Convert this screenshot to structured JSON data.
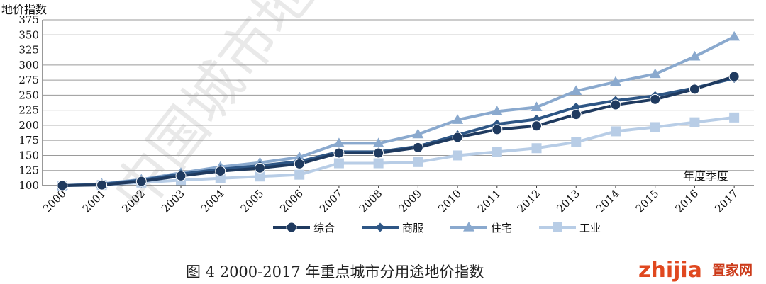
{
  "chart_data": {
    "type": "line",
    "ylabel": "地价指数",
    "xlabel": "年度季度",
    "ylim": [
      100,
      375
    ],
    "yticks": [
      100,
      125,
      150,
      175,
      200,
      225,
      250,
      275,
      300,
      325,
      350,
      375
    ],
    "categories": [
      "2000",
      "2001",
      "2002",
      "2003",
      "2004",
      "2005",
      "2006",
      "2007",
      "2008",
      "2009",
      "2010",
      "2011",
      "2012",
      "2013",
      "2014",
      "2015",
      "2016",
      "2017"
    ],
    "grid": true,
    "legend_position": "bottom",
    "series": [
      {
        "name": "综合",
        "marker": "circle",
        "color": "#1f3a5f",
        "values": [
          100,
          101,
          107,
          116,
          124,
          129,
          136,
          154,
          154,
          163,
          180,
          193,
          199,
          218,
          234,
          243,
          260,
          281
        ]
      },
      {
        "name": "商服",
        "marker": "diamond",
        "color": "#2e5685",
        "values": [
          100,
          102,
          109,
          119,
          127,
          133,
          140,
          156,
          156,
          165,
          184,
          202,
          210,
          230,
          241,
          249,
          262,
          278
        ]
      },
      {
        "name": "住宅",
        "marker": "triangle",
        "color": "#8aa9ce",
        "values": [
          100,
          103,
          110,
          121,
          131,
          138,
          147,
          170,
          170,
          185,
          209,
          223,
          230,
          257,
          272,
          285,
          314,
          347
        ]
      },
      {
        "name": "工业",
        "marker": "square",
        "color": "#b8cde6",
        "values": [
          100,
          101,
          105,
          109,
          112,
          115,
          118,
          137,
          137,
          139,
          150,
          156,
          162,
          172,
          190,
          197,
          205,
          213
        ]
      }
    ]
  },
  "caption": "图 4   2000-2017 年重点城市分用途地价指数",
  "watermark": {
    "stamp_text": "中国城市地价监测",
    "logo_text": "zhijia",
    "logo_suffix": "置家网"
  }
}
